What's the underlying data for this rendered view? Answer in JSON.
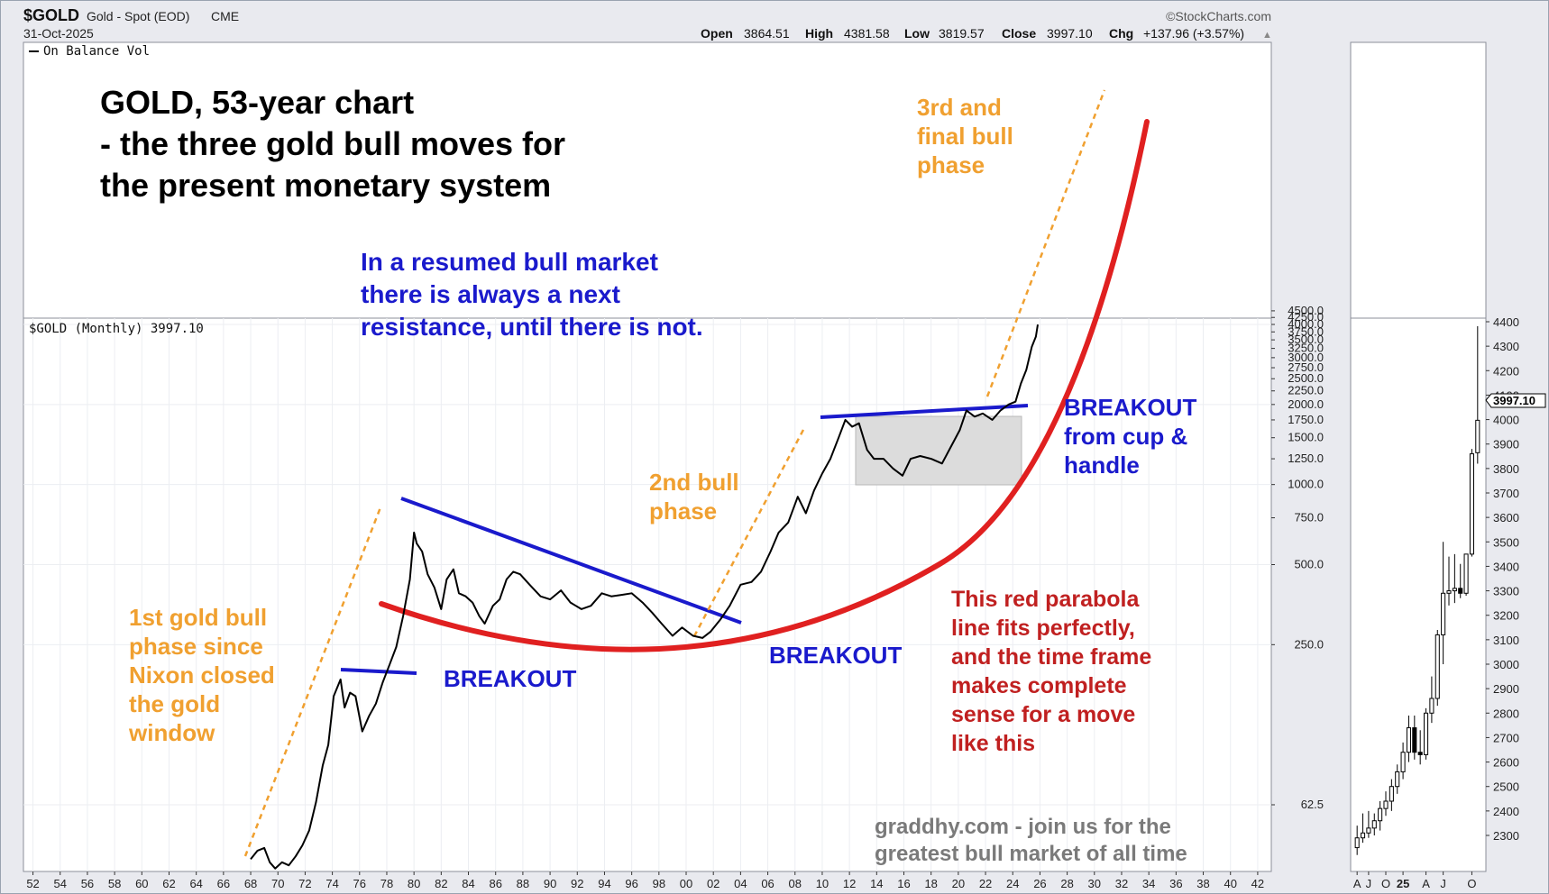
{
  "header": {
    "symbol": "$GOLD",
    "description": "Gold - Spot (EOD)",
    "exchange": "CME",
    "date": "31-Oct-2025",
    "source": "©StockCharts.com",
    "ohlc": {
      "open_label": "Open",
      "open": "3864.51",
      "high_label": "High",
      "high": "4381.58",
      "low_label": "Low",
      "low": "3819.57",
      "close_label": "Close",
      "close": "3997.10",
      "chg_label": "Chg",
      "chg": "+137.96 (+3.57%)"
    }
  },
  "indicator_label": "On Balance Vol",
  "price_label": "$GOLD (Monthly) 3997.10",
  "annotations": {
    "title_lines": [
      "GOLD, 53-year chart",
      "- the three gold bull moves for",
      "the present monetary system"
    ],
    "resistance_lines": [
      "In a resumed bull market",
      "there is always a next",
      "resistance, until there is not."
    ],
    "phase3_lines": [
      "3rd and",
      "final bull",
      "phase"
    ],
    "phase2_lines": [
      "2nd bull",
      "phase"
    ],
    "phase1_lines": [
      "1st gold bull",
      "phase since",
      "Nixon closed",
      "the gold",
      "window"
    ],
    "breakout1": "BREAKOUT",
    "breakout2": "BREAKOUT",
    "cup_lines": [
      "BREAKOUT",
      "from cup &",
      "handle"
    ],
    "parabola_lines": [
      "This red parabola",
      "line fits perfectly,",
      "and the time frame",
      "makes complete",
      "sense for a move",
      "like this"
    ],
    "footer_lines": [
      "graddhy.com - join us for the",
      "greatest bull market of all time"
    ]
  },
  "colors": {
    "orange": "#f0a030",
    "blue": "#1a1acc",
    "red": "#e02020",
    "dark_red": "#c02020",
    "gray_text": "#7a7a7a",
    "price": "#000000"
  },
  "chart_data": [
    {
      "type": "line",
      "scale": "log",
      "x_tick_labels": [
        "52",
        "54",
        "56",
        "58",
        "60",
        "62",
        "64",
        "66",
        "68",
        "70",
        "72",
        "74",
        "76",
        "78",
        "80",
        "82",
        "84",
        "86",
        "88",
        "90",
        "92",
        "94",
        "96",
        "98",
        "00",
        "02",
        "04",
        "06",
        "08",
        "10",
        "12",
        "14",
        "16",
        "18",
        "20",
        "22",
        "24",
        "26",
        "28",
        "30",
        "32",
        "34",
        "36",
        "38",
        "40",
        "42"
      ],
      "y_tick_labels": [
        "62.5",
        "250.0",
        "500.0",
        "750.0",
        "1000.0",
        "1250.0",
        "1500.0",
        "1750.0",
        "2000.0",
        "2250.0",
        "2500.0",
        "2750.0",
        "3000.0",
        "3250.0",
        "3500.0",
        "3750.0",
        "4000.0",
        "4250.0",
        "4500.0"
      ],
      "y_ticks": [
        62.5,
        250,
        500,
        750,
        1000,
        1250,
        1500,
        1750,
        2000,
        2250,
        2500,
        2750,
        3000,
        3250,
        3500,
        3750,
        4000,
        4250,
        4500
      ],
      "ylim": [
        40,
        4700
      ],
      "xlim": [
        1951.3,
        2043.0
      ],
      "series": [
        {
          "x": [
            1968.0,
            1968.5,
            1969.0,
            1969.4,
            1969.8,
            1970.3,
            1970.8,
            1971.3,
            1971.8,
            1972.3,
            1972.8,
            1973.3,
            1973.7,
            1974.1,
            1974.6,
            1974.9,
            1975.3,
            1975.7,
            1976.2,
            1976.7,
            1977.2,
            1977.7,
            1978.2,
            1978.7,
            1979.2,
            1979.7,
            1980.0,
            1980.2,
            1980.6,
            1981.0,
            1981.5,
            1982.0,
            1982.4,
            1982.9,
            1983.3,
            1983.8,
            1984.3,
            1984.8,
            1985.2,
            1985.8,
            1986.3,
            1986.8,
            1987.3,
            1987.8,
            1988.5,
            1989.3,
            1990.0,
            1990.8,
            1991.5,
            1992.3,
            1993.0,
            1993.8,
            1994.5,
            1995.3,
            1996.0,
            1996.8,
            1997.5,
            1998.2,
            1999.0,
            1999.7,
            2000.5,
            2001.2,
            2001.8,
            2002.5,
            2003.2,
            2004.0,
            2004.8,
            2005.5,
            2006.2,
            2006.8,
            2007.5,
            2008.2,
            2008.8,
            2009.4,
            2010.0,
            2010.6,
            2011.2,
            2011.7,
            2012.2,
            2012.7,
            2013.3,
            2013.8,
            2014.5,
            2015.2,
            2015.9,
            2016.5,
            2017.2,
            2018.0,
            2018.8,
            2019.5,
            2020.1,
            2020.6,
            2021.2,
            2021.8,
            2022.5,
            2023.1,
            2023.7,
            2024.2,
            2024.6,
            2025.0,
            2025.4,
            2025.7,
            2025.84
          ],
          "y": [
            39,
            42,
            43,
            38,
            36,
            38,
            37,
            40,
            44,
            50,
            64,
            88,
            105,
            160,
            185,
            145,
            165,
            160,
            118,
            135,
            150,
            180,
            210,
            245,
            320,
            440,
            660,
            600,
            560,
            460,
            410,
            340,
            440,
            480,
            390,
            380,
            360,
            320,
            300,
            350,
            370,
            440,
            470,
            460,
            420,
            380,
            370,
            400,
            360,
            340,
            350,
            390,
            380,
            385,
            390,
            360,
            330,
            300,
            270,
            290,
            270,
            265,
            280,
            310,
            350,
            420,
            430,
            470,
            560,
            660,
            720,
            900,
            780,
            950,
            1100,
            1250,
            1500,
            1750,
            1650,
            1700,
            1350,
            1250,
            1250,
            1150,
            1080,
            1250,
            1280,
            1250,
            1200,
            1400,
            1600,
            1900,
            1800,
            1850,
            1750,
            1900,
            2000,
            2050,
            2400,
            2700,
            3300,
            3600,
            3997
          ]
        }
      ]
    },
    {
      "type": "candlestick",
      "period": "monthly",
      "x_tick_labels": [
        "A",
        "J",
        "O",
        "25",
        "A",
        "J",
        "O"
      ],
      "y_tick_labels": [
        "2300",
        "2400",
        "2500",
        "2600",
        "2700",
        "2800",
        "2900",
        "3000",
        "3100",
        "3200",
        "3300",
        "3400",
        "3500",
        "3600",
        "3700",
        "3800",
        "3900",
        "4000",
        "4100",
        "4200",
        "4300",
        "4400"
      ],
      "y_ticks": [
        2300,
        2400,
        2500,
        2600,
        2700,
        2800,
        2900,
        3000,
        3100,
        3200,
        3300,
        3400,
        3500,
        3600,
        3700,
        3800,
        3900,
        4000,
        4100,
        4200,
        4300,
        4400
      ],
      "ylim": [
        2200,
        4450
      ],
      "last_value_label": "3997.10",
      "candles": [
        {
          "o": 2250,
          "h": 2340,
          "l": 2220,
          "c": 2290
        },
        {
          "o": 2290,
          "h": 2390,
          "l": 2270,
          "c": 2310
        },
        {
          "o": 2310,
          "h": 2400,
          "l": 2290,
          "c": 2330
        },
        {
          "o": 2330,
          "h": 2390,
          "l": 2300,
          "c": 2360
        },
        {
          "o": 2360,
          "h": 2440,
          "l": 2320,
          "c": 2410
        },
        {
          "o": 2410,
          "h": 2480,
          "l": 2380,
          "c": 2440
        },
        {
          "o": 2440,
          "h": 2530,
          "l": 2400,
          "c": 2500
        },
        {
          "o": 2500,
          "h": 2590,
          "l": 2470,
          "c": 2560
        },
        {
          "o": 2560,
          "h": 2680,
          "l": 2530,
          "c": 2640
        },
        {
          "o": 2640,
          "h": 2790,
          "l": 2600,
          "c": 2740
        },
        {
          "o": 2740,
          "h": 2790,
          "l": 2610,
          "c": 2640
        },
        {
          "o": 2640,
          "h": 2730,
          "l": 2590,
          "c": 2630
        },
        {
          "o": 2630,
          "h": 2820,
          "l": 2610,
          "c": 2800
        },
        {
          "o": 2800,
          "h": 2950,
          "l": 2760,
          "c": 2860
        },
        {
          "o": 2860,
          "h": 3140,
          "l": 2830,
          "c": 3120
        },
        {
          "o": 3120,
          "h": 3500,
          "l": 3000,
          "c": 3290
        },
        {
          "o": 3290,
          "h": 3440,
          "l": 3240,
          "c": 3300
        },
        {
          "o": 3300,
          "h": 3450,
          "l": 3250,
          "c": 3310
        },
        {
          "o": 3310,
          "h": 3410,
          "l": 3270,
          "c": 3290
        },
        {
          "o": 3290,
          "h": 3440,
          "l": 3280,
          "c": 3450
        },
        {
          "o": 3450,
          "h": 3880,
          "l": 3440,
          "c": 3860
        },
        {
          "o": 3864.51,
          "h": 4381.58,
          "l": 3819.57,
          "c": 3997.1
        }
      ]
    }
  ]
}
